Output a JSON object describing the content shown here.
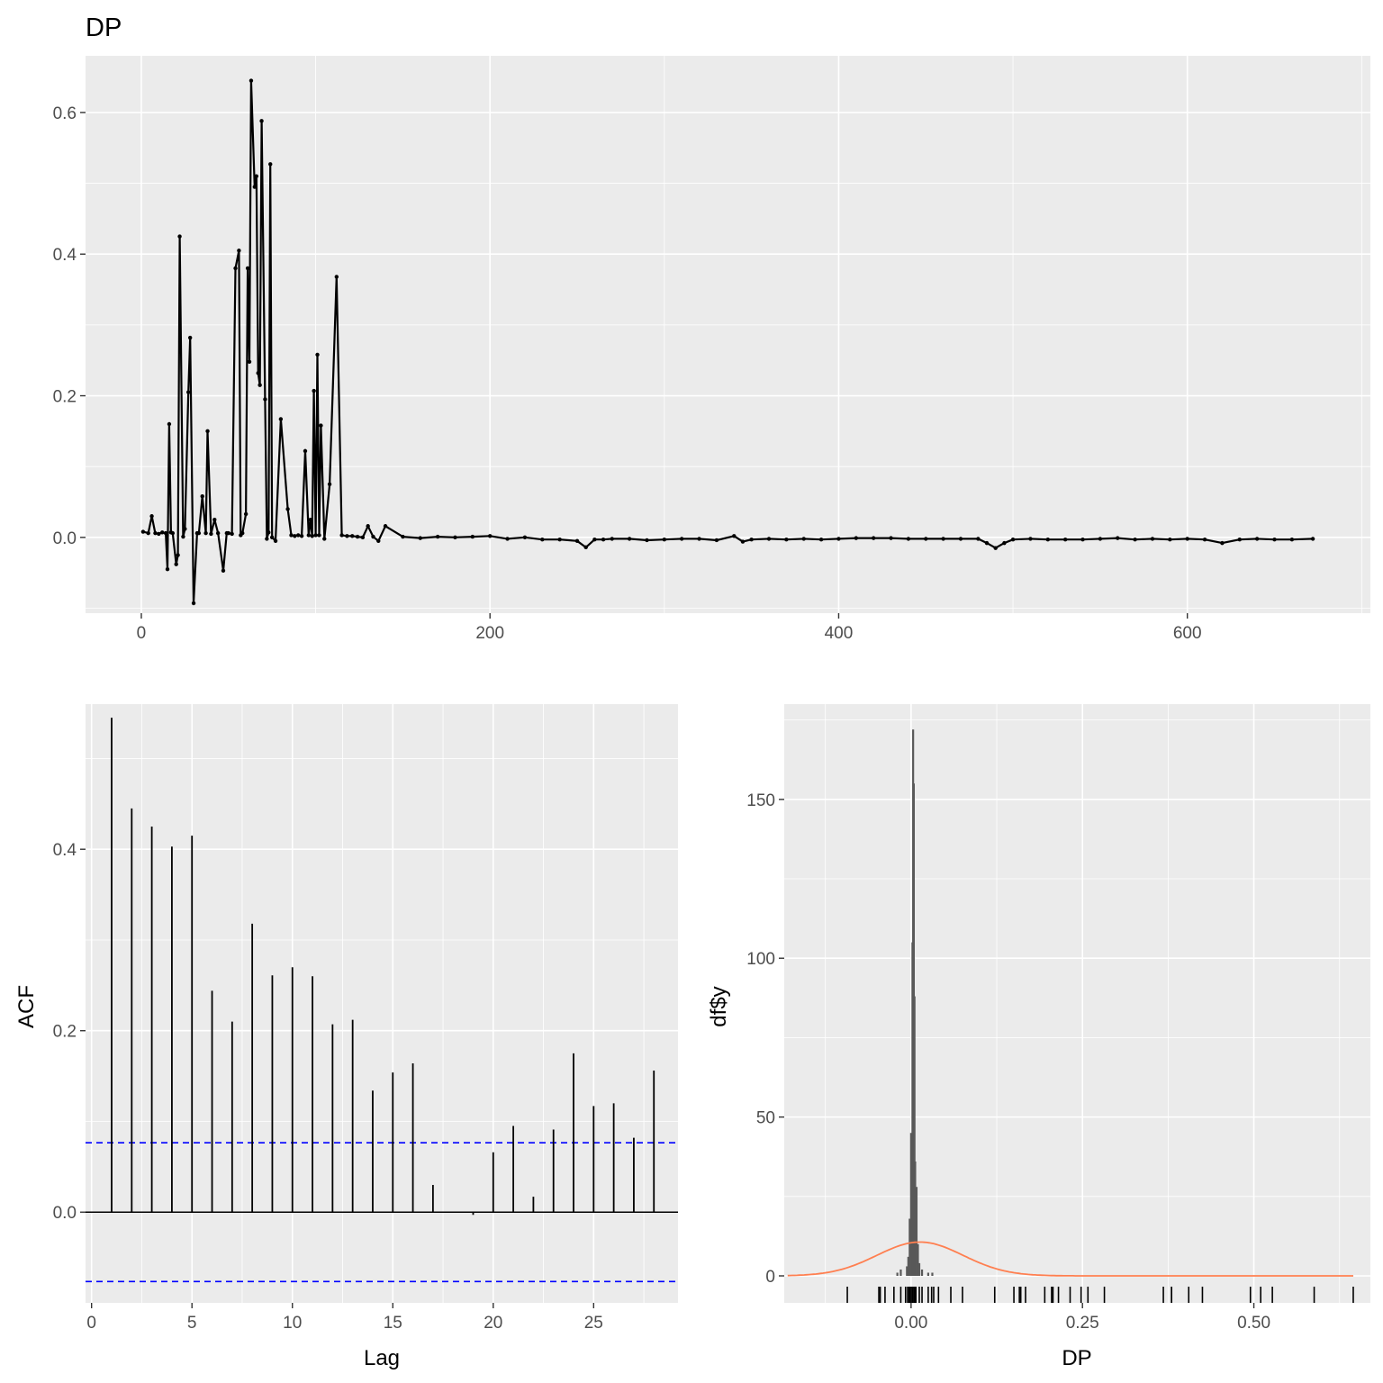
{
  "chart_data": [
    {
      "type": "line",
      "title": "DP",
      "xlabel": "",
      "ylabel": "",
      "xlim": [
        -32,
        705
      ],
      "ylim": [
        -0.107,
        0.68
      ],
      "x_ticks": [
        0,
        200,
        400,
        600
      ],
      "x_tick_labels": [
        "0",
        "200",
        "400",
        "600"
      ],
      "y_ticks": [
        0.0,
        0.2,
        0.4,
        0.6
      ],
      "y_tick_labels": [
        "0.0",
        "0.2",
        "0.4",
        "0.6"
      ],
      "grid": true,
      "series": [
        {
          "x": [
            1,
            4,
            6,
            8,
            10,
            12,
            14,
            15,
            16,
            17,
            18,
            20,
            21,
            22,
            24,
            25,
            27,
            28,
            30,
            32,
            33,
            35,
            37,
            38,
            40,
            42,
            44,
            47,
            49,
            50,
            52,
            54,
            56,
            57,
            58,
            60,
            61,
            62,
            63,
            65,
            66,
            67,
            68,
            69,
            71,
            72,
            73,
            74,
            75,
            77,
            80,
            84,
            86,
            88,
            90,
            92,
            94,
            96,
            97,
            98,
            99,
            100,
            101,
            102,
            103,
            105,
            108,
            112,
            115,
            118,
            121,
            124,
            127,
            130,
            133,
            136,
            140,
            150,
            160,
            170,
            180,
            190,
            200,
            210,
            220,
            230,
            240,
            250,
            255,
            260,
            265,
            270,
            280,
            290,
            300,
            310,
            320,
            330,
            340,
            345,
            350,
            360,
            370,
            380,
            390,
            400,
            410,
            420,
            430,
            440,
            450,
            460,
            470,
            480,
            485,
            490,
            495,
            500,
            510,
            520,
            530,
            540,
            550,
            560,
            570,
            580,
            590,
            600,
            610,
            620,
            630,
            640,
            650,
            660,
            672
          ],
          "y": [
            0.008,
            0.006,
            0.03,
            0.006,
            0.005,
            0.007,
            0.006,
            -0.045,
            0.16,
            0.007,
            0.006,
            -0.038,
            -0.025,
            0.425,
            0.001,
            0.012,
            0.205,
            0.282,
            -0.093,
            0.006,
            0.006,
            0.058,
            0.006,
            0.15,
            0.005,
            0.025,
            0.006,
            -0.047,
            0.006,
            0.006,
            0.005,
            0.38,
            0.405,
            0.003,
            0.006,
            0.033,
            0.38,
            0.248,
            0.645,
            0.495,
            0.51,
            0.232,
            0.215,
            0.588,
            0.195,
            -0.002,
            0.007,
            0.527,
            0.0,
            -0.005,
            0.167,
            0.04,
            0.003,
            0.002,
            0.003,
            0.002,
            0.122,
            0.003,
            0.025,
            0.002,
            0.207,
            0.003,
            0.258,
            0.003,
            0.158,
            -0.002,
            0.075,
            0.368,
            0.003,
            0.002,
            0.002,
            0.001,
            0.0,
            0.016,
            0.001,
            -0.005,
            0.016,
            0.001,
            -0.001,
            0.001,
            0.0,
            0.001,
            0.002,
            -0.002,
            0.0,
            -0.003,
            -0.003,
            -0.005,
            -0.014,
            -0.003,
            -0.003,
            -0.002,
            -0.002,
            -0.004,
            -0.003,
            -0.002,
            -0.002,
            -0.004,
            0.002,
            -0.006,
            -0.003,
            -0.002,
            -0.003,
            -0.002,
            -0.003,
            -0.002,
            -0.001,
            -0.001,
            -0.001,
            -0.002,
            -0.002,
            -0.002,
            -0.002,
            -0.002,
            -0.008,
            -0.015,
            -0.008,
            -0.003,
            -0.002,
            -0.003,
            -0.003,
            -0.003,
            -0.002,
            -0.001,
            -0.003,
            -0.002,
            -0.003,
            -0.002,
            -0.003,
            -0.008,
            -0.003,
            -0.002,
            -0.003,
            -0.003,
            -0.002
          ]
        }
      ]
    },
    {
      "type": "bar",
      "title": "",
      "xlabel": "Lag",
      "ylabel": "ACF",
      "xlim": [
        -0.3,
        29.2
      ],
      "ylim": [
        -0.1,
        0.56
      ],
      "x_ticks": [
        0,
        5,
        10,
        15,
        20,
        25
      ],
      "x_tick_labels": [
        "0",
        "5",
        "10",
        "15",
        "20",
        "25"
      ],
      "y_ticks": [
        0.0,
        0.2,
        0.4
      ],
      "y_tick_labels": [
        "0.0",
        "0.2",
        "0.4"
      ],
      "grid": true,
      "categories": [
        1,
        2,
        3,
        4,
        5,
        6,
        7,
        8,
        9,
        10,
        11,
        12,
        13,
        14,
        15,
        16,
        17,
        18,
        19,
        20,
        21,
        22,
        23,
        24,
        25,
        26,
        27,
        28
      ],
      "values": [
        0.545,
        0.445,
        0.425,
        0.403,
        0.415,
        0.244,
        0.21,
        0.318,
        0.261,
        0.27,
        0.26,
        0.207,
        0.212,
        0.134,
        0.154,
        0.164,
        0.03,
        0.0,
        -0.003,
        0.066,
        0.095,
        0.017,
        0.091,
        0.175,
        0.117,
        0.12,
        0.082,
        0.156
      ],
      "confidence_bound": 0.0765,
      "bound_color": "#0000ff"
    },
    {
      "type": "bar",
      "title": "",
      "xlabel": "DP",
      "ylabel": "df$y",
      "xlim": [
        -0.185,
        0.67
      ],
      "ylim": [
        -8.5,
        180
      ],
      "x_ticks": [
        0.0,
        0.25,
        0.5
      ],
      "x_tick_labels": [
        "0.00",
        "0.25",
        "0.50"
      ],
      "y_ticks": [
        0,
        50,
        100,
        150
      ],
      "y_tick_labels": [
        "0",
        "50",
        "100",
        "150"
      ],
      "grid": true,
      "histogram_bins": [
        {
          "x": -0.02,
          "count": 1
        },
        {
          "x": -0.015,
          "count": 2
        },
        {
          "x": -0.006,
          "count": 3
        },
        {
          "x": -0.004,
          "count": 6
        },
        {
          "x": -0.002,
          "count": 18
        },
        {
          "x": 0.0,
          "count": 45
        },
        {
          "x": 0.002,
          "count": 105
        },
        {
          "x": 0.003,
          "count": 172
        },
        {
          "x": 0.004,
          "count": 155
        },
        {
          "x": 0.005,
          "count": 88
        },
        {
          "x": 0.006,
          "count": 36
        },
        {
          "x": 0.008,
          "count": 28
        },
        {
          "x": 0.01,
          "count": 10
        },
        {
          "x": 0.012,
          "count": 4
        },
        {
          "x": 0.016,
          "count": 2
        },
        {
          "x": 0.025,
          "count": 1
        },
        {
          "x": 0.031,
          "count": 1
        }
      ],
      "normal_curve": {
        "mean": 0.013,
        "sd": 0.063,
        "n": 672,
        "binwidth": 0.0025,
        "color": "#ff7f50"
      },
      "rug_x": [
        -0.093,
        -0.047,
        -0.045,
        -0.038,
        -0.025,
        -0.015,
        -0.008,
        -0.005,
        -0.003,
        -0.002,
        0.0,
        0.002,
        0.003,
        0.005,
        0.006,
        0.007,
        0.012,
        0.016,
        0.025,
        0.03,
        0.033,
        0.04,
        0.058,
        0.075,
        0.122,
        0.15,
        0.158,
        0.16,
        0.167,
        0.195,
        0.205,
        0.207,
        0.215,
        0.232,
        0.248,
        0.258,
        0.282,
        0.368,
        0.38,
        0.38,
        0.405,
        0.425,
        0.495,
        0.51,
        0.527,
        0.588,
        0.645
      ]
    }
  ]
}
